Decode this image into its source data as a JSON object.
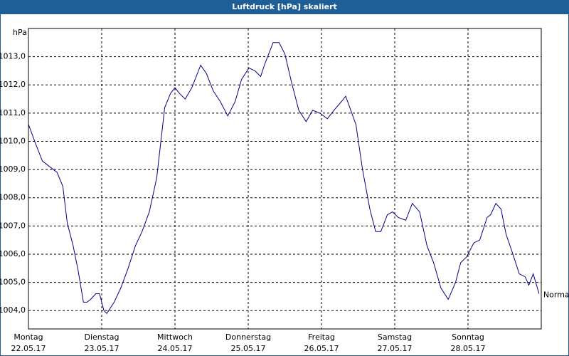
{
  "chart_data": {
    "type": "line",
    "title": "Luftdruck [hPa] skaliert",
    "ylabel": "hPa",
    "annotation": "Normal",
    "x": [
      0,
      0.1,
      0.19,
      0.29,
      0.39,
      0.47,
      0.53,
      0.61,
      0.68,
      0.75,
      0.8,
      0.85,
      0.92,
      0.97,
      1.03,
      1.07,
      1.17,
      1.26,
      1.36,
      1.46,
      1.55,
      1.65,
      1.75,
      1.86,
      1.94,
      2,
      2.06,
      2.14,
      2.23,
      2.35,
      2.43,
      2.52,
      2.62,
      2.72,
      2.82,
      2.91,
      3.01,
      3.09,
      3.17,
      3.22,
      3.34,
      3.42,
      3.5,
      3.59,
      3.69,
      3.79,
      3.88,
      3.98,
      4.08,
      4.17,
      4.27,
      4.33,
      4.47,
      4.56,
      4.66,
      4.74,
      4.81,
      4.9,
      4.97,
      5.05,
      5.15,
      5.24,
      5.34,
      5.44,
      5.53,
      5.63,
      5.73,
      5.83,
      5.9,
      5.98,
      6.08,
      6.16,
      6.26,
      6.31,
      6.38,
      6.45,
      6.52,
      6.6,
      6.7,
      6.78,
      6.83,
      6.89,
      6.97
    ],
    "series": [
      {
        "color": "#00008b",
        "values": [
          1010.6,
          1009.9,
          1009.3,
          1009.1,
          1008.9,
          1008.4,
          1007.1,
          1006.3,
          1005.4,
          1004.3,
          1004.3,
          1004.4,
          1004.6,
          1004.6,
          1004.0,
          1003.9,
          1004.3,
          1004.8,
          1005.5,
          1006.3,
          1006.8,
          1007.5,
          1008.7,
          1011.2,
          1011.7,
          1011.9,
          1011.7,
          1011.5,
          1011.9,
          1012.7,
          1012.4,
          1011.8,
          1011.4,
          1010.9,
          1011.4,
          1012.2,
          1012.6,
          1012.5,
          1012.3,
          1012.7,
          1013.5,
          1013.5,
          1013.1,
          1012.1,
          1011.1,
          1010.7,
          1011.1,
          1011.0,
          1010.8,
          1011.1,
          1011.4,
          1011.6,
          1010.6,
          1009.0,
          1007.6,
          1006.8,
          1006.8,
          1007.4,
          1007.5,
          1007.3,
          1007.2,
          1007.8,
          1007.5,
          1006.3,
          1005.7,
          1004.8,
          1004.4,
          1005.0,
          1005.7,
          1005.9,
          1006.4,
          1006.5,
          1007.3,
          1007.4,
          1007.8,
          1007.6,
          1006.7,
          1006.1,
          1005.3,
          1005.2,
          1004.9,
          1005.3,
          1004.6
        ]
      }
    ],
    "xlim": [
      0,
      7
    ],
    "xticks": [
      {
        "value": 0,
        "label": "Montag"
      },
      {
        "value": 1,
        "label": "Dienstag"
      },
      {
        "value": 2,
        "label": "Mittwoch"
      },
      {
        "value": 3,
        "label": "Donnerstag"
      },
      {
        "value": 4,
        "label": "Freitag"
      },
      {
        "value": 5,
        "label": "Samstag"
      },
      {
        "value": 6,
        "label": "Sonntag"
      }
    ],
    "xtick_dates": [
      "22.05.17",
      "23.05.17",
      "24.05.17",
      "25.05.17",
      "26.05.17",
      "27.05.17",
      "28.05.17"
    ],
    "ylim": [
      1003.35,
      1014
    ],
    "yticks": [
      {
        "value": 1004,
        "label": "1004,0"
      },
      {
        "value": 1005,
        "label": "1005,0"
      },
      {
        "value": 1006,
        "label": "1006,0"
      },
      {
        "value": 1007,
        "label": "1007,0"
      },
      {
        "value": 1008,
        "label": "1008,0"
      },
      {
        "value": 1009,
        "label": "1009,0"
      },
      {
        "value": 1010,
        "label": "1010,0"
      },
      {
        "value": 1011,
        "label": "1011,0"
      },
      {
        "value": 1012,
        "label": "1012,0"
      },
      {
        "value": 1013,
        "label": "1013,0"
      }
    ],
    "grid": true
  }
}
